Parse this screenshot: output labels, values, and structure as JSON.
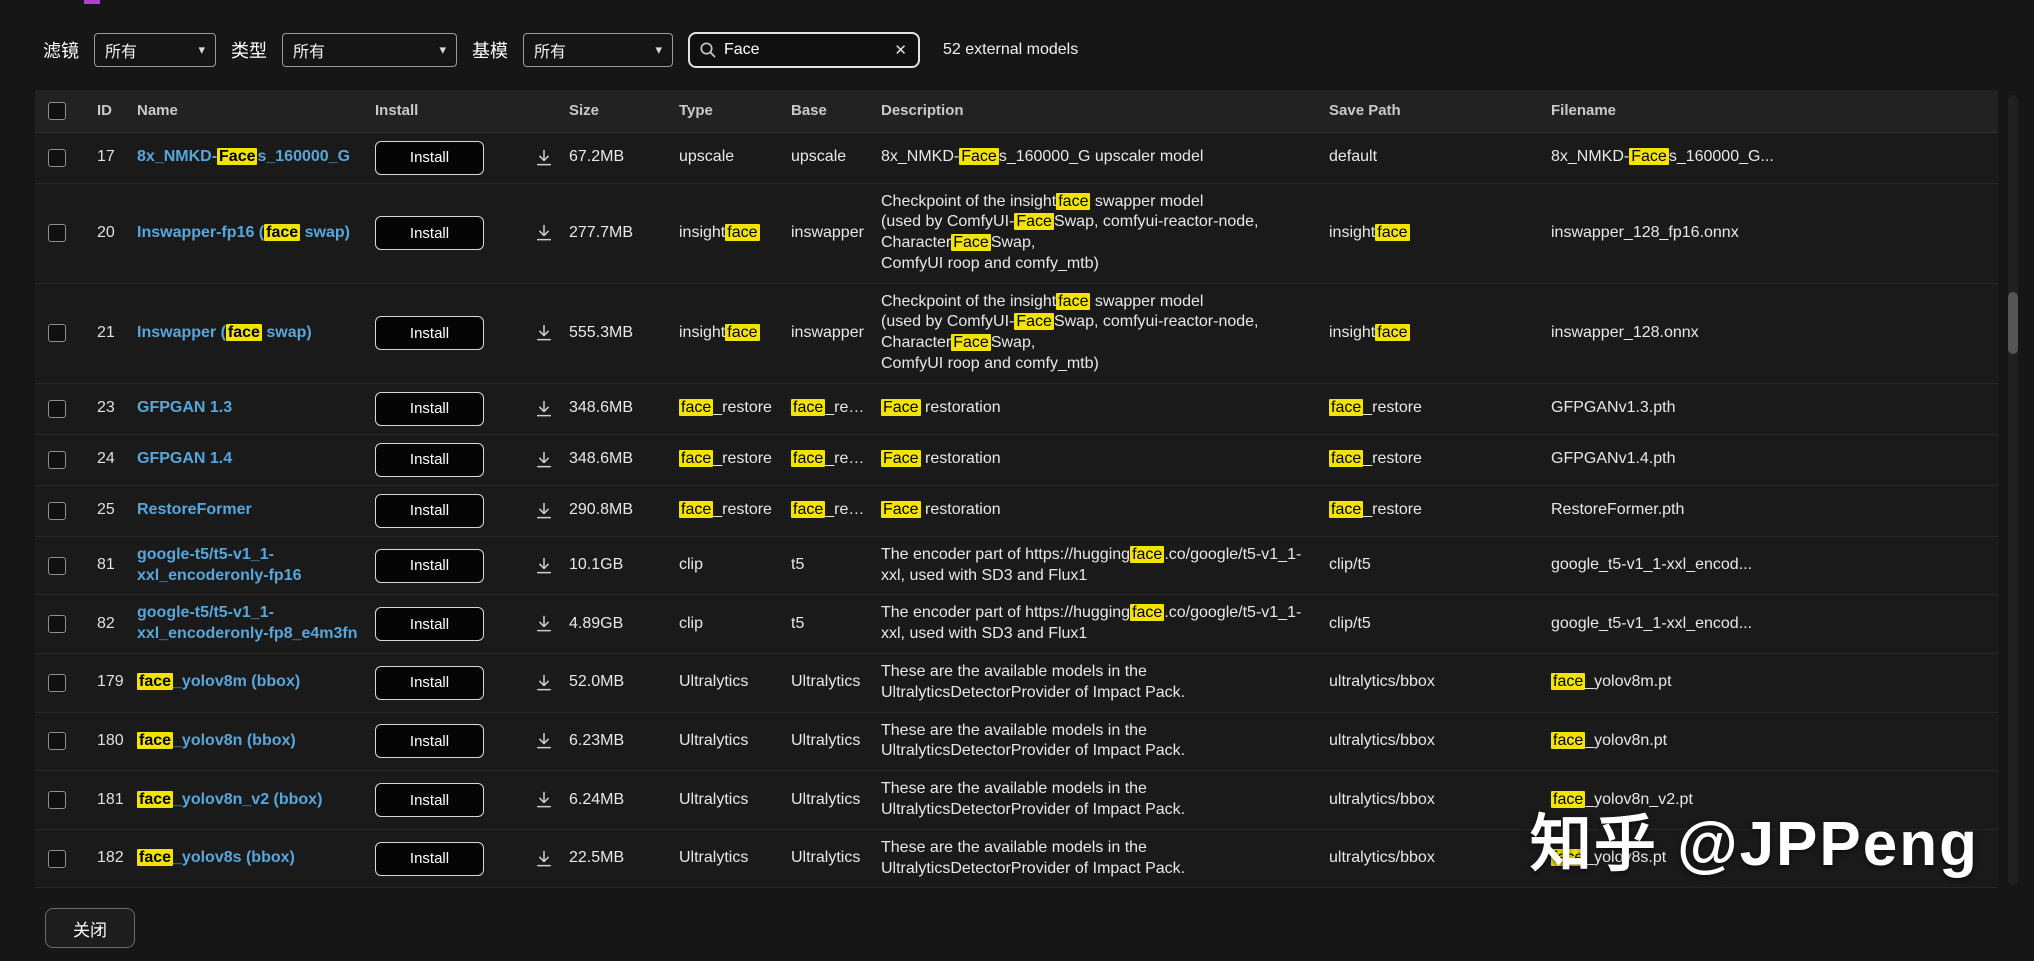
{
  "highlight_term": "face",
  "colors": {
    "link": "#58a7dc",
    "highlight": "#f2e400",
    "highlight_text": "#000000"
  },
  "filters": {
    "label_filter": "滤镜",
    "label_type": "类型",
    "label_base": "基模",
    "all_option_filter": "所有",
    "all_option_type": "所有",
    "all_option_base": "所有",
    "search_value": "Face",
    "result_count": "52 external models"
  },
  "table": {
    "install_label": "Install",
    "headers": {
      "id": "ID",
      "name": "Name",
      "install": "Install",
      "size": "Size",
      "type": "Type",
      "base": "Base",
      "description": "Description",
      "save_path": "Save Path",
      "filename": "Filename"
    },
    "rows": [
      {
        "id": "17",
        "name": "8x_NMKD-Faces_160000_G",
        "size": "67.2MB",
        "type": "upscale",
        "base": "upscale",
        "description": "8x_NMKD-Faces_160000_G upscaler model",
        "save_path": "default",
        "filename": "8x_NMKD-Faces_160000_G..."
      },
      {
        "id": "20",
        "name": "Inswapper-fp16 (face swap)",
        "size": "277.7MB",
        "type": "insightface",
        "base": "inswapper",
        "description": "Checkpoint of the insightface swapper model\n(used by ComfyUI-FaceSwap, comfyui-reactor-node,\nCharacterFaceSwap,\nComfyUI roop and comfy_mtb)",
        "save_path": "insightface",
        "filename": "inswapper_128_fp16.onnx"
      },
      {
        "id": "21",
        "name": "Inswapper (face swap)",
        "size": "555.3MB",
        "type": "insightface",
        "base": "inswapper",
        "description": "Checkpoint of the insightface swapper model\n(used by ComfyUI-FaceSwap, comfyui-reactor-node,\nCharacterFaceSwap,\nComfyUI roop and comfy_mtb)",
        "save_path": "insightface",
        "filename": "inswapper_128.onnx"
      },
      {
        "id": "23",
        "name": "GFPGAN 1.3",
        "size": "348.6MB",
        "type": "face_restore",
        "base": "face_rest...",
        "description": "Face restoration",
        "save_path": "face_restore",
        "filename": "GFPGANv1.3.pth"
      },
      {
        "id": "24",
        "name": "GFPGAN 1.4",
        "size": "348.6MB",
        "type": "face_restore",
        "base": "face_rest...",
        "description": "Face restoration",
        "save_path": "face_restore",
        "filename": "GFPGANv1.4.pth"
      },
      {
        "id": "25",
        "name": "RestoreFormer",
        "size": "290.8MB",
        "type": "face_restore",
        "base": "face_rest...",
        "description": "Face restoration",
        "save_path": "face_restore",
        "filename": "RestoreFormer.pth"
      },
      {
        "id": "81",
        "name": "google-t5/t5-v1_1-xxl_encoderonly-fp16",
        "size": "10.1GB",
        "type": "clip",
        "base": "t5",
        "description": "The encoder part of https://huggingface.co/google/t5-v1_1-xxl, used with SD3 and Flux1",
        "save_path": "clip/t5",
        "filename": "google_t5-v1_1-xxl_encod..."
      },
      {
        "id": "82",
        "name": "google-t5/t5-v1_1-xxl_encoderonly-fp8_e4m3fn",
        "size": "4.89GB",
        "type": "clip",
        "base": "t5",
        "description": "The encoder part of https://huggingface.co/google/t5-v1_1-xxl, used with SD3 and Flux1",
        "save_path": "clip/t5",
        "filename": "google_t5-v1_1-xxl_encod..."
      },
      {
        "id": "179",
        "name": "face_yolov8m (bbox)",
        "size": "52.0MB",
        "type": "Ultralytics",
        "base": "Ultralytics",
        "description": "These are the available models in the UltralyticsDetectorProvider of Impact Pack.",
        "save_path": "ultralytics/bbox",
        "filename": "face_yolov8m.pt"
      },
      {
        "id": "180",
        "name": "face_yolov8n (bbox)",
        "size": "6.23MB",
        "type": "Ultralytics",
        "base": "Ultralytics",
        "description": "These are the available models in the UltralyticsDetectorProvider of Impact Pack.",
        "save_path": "ultralytics/bbox",
        "filename": "face_yolov8n.pt"
      },
      {
        "id": "181",
        "name": "face_yolov8n_v2 (bbox)",
        "size": "6.24MB",
        "type": "Ultralytics",
        "base": "Ultralytics",
        "description": "These are the available models in the UltralyticsDetectorProvider of Impact Pack.",
        "save_path": "ultralytics/bbox",
        "filename": "face_yolov8n_v2.pt"
      },
      {
        "id": "182",
        "name": "face_yolov8s (bbox)",
        "size": "22.5MB",
        "type": "Ultralytics",
        "base": "Ultralytics",
        "description": "These are the available models in the UltralyticsDetectorProvider of Impact Pack.",
        "save_path": "ultralytics/bbox",
        "filename": "face_yolov8s.pt"
      }
    ]
  },
  "footer": {
    "close_label": "关闭"
  },
  "watermark": "知乎 @JPPeng"
}
